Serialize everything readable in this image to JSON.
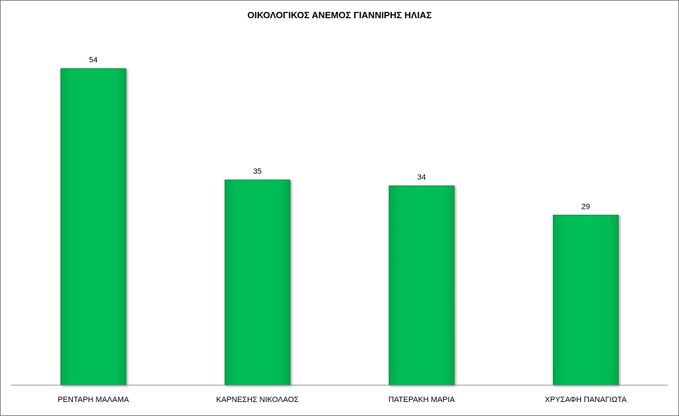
{
  "chart_data": {
    "type": "bar",
    "title": "ΟΙΚΟΛΟΓΙΚΟΣ ΑΝΕΜΟΣ ΓΙΑΝΝΙΡΗΣ ΗΛΙΑΣ",
    "categories": [
      "ΡΕΝΤΑΡΗ ΜΑΛΑΜΑ",
      "ΚΑΡΝΕΣΗΣ ΝΙΚΟΛΑΟΣ",
      "ΠΑΤΕΡΑΚΗ ΜΑΡΙΑ",
      "ΧΡΥΣΑΦΗ ΠΑΝΑΓΙΩΤΑ"
    ],
    "values": [
      54,
      35,
      34,
      29
    ],
    "data_labels": [
      "54",
      "35",
      "34",
      "29"
    ],
    "ylim": [
      0,
      54
    ],
    "grid": false,
    "legend": "none",
    "bar_color": "#00b050",
    "bar_edge_color": "#008a3e"
  }
}
